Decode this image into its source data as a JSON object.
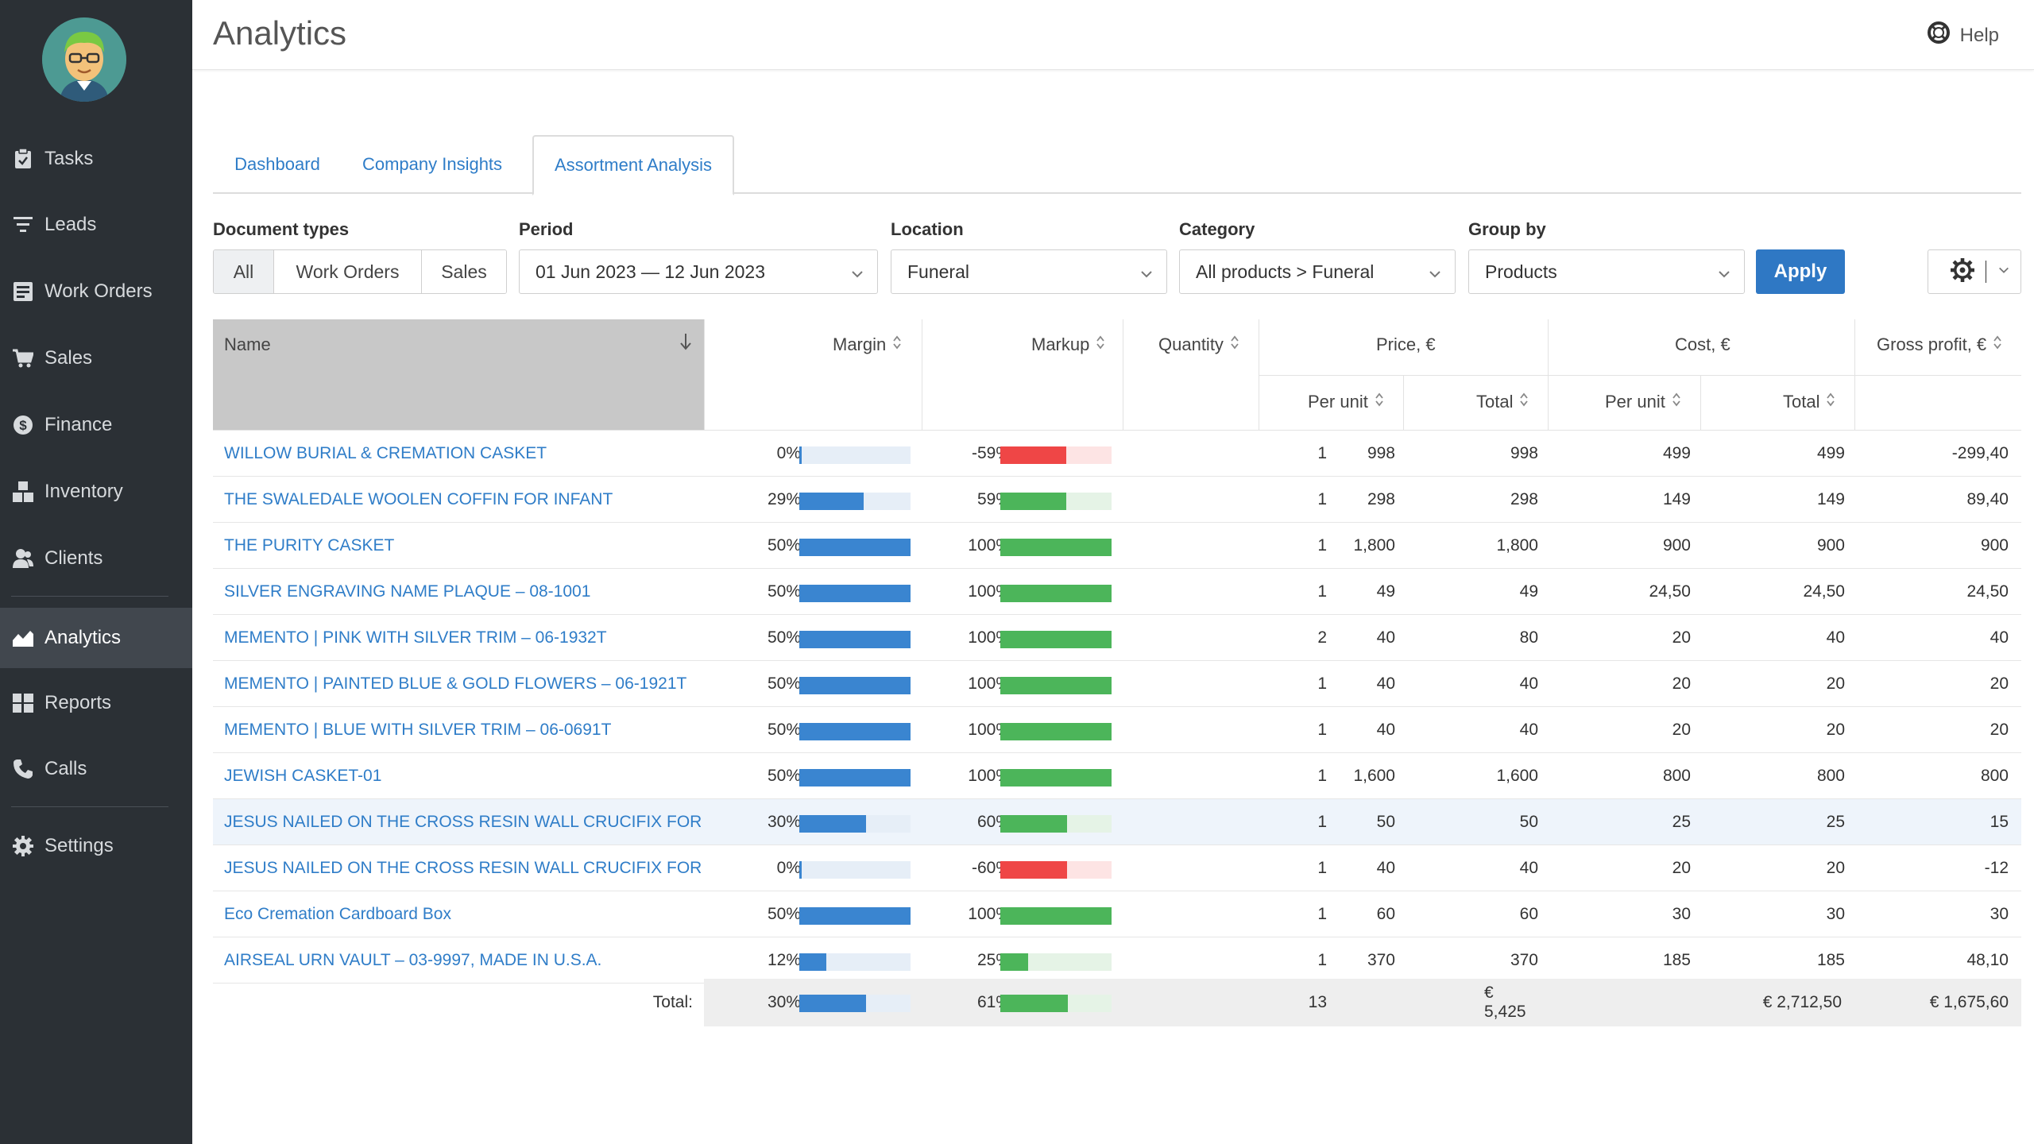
{
  "sidebar": {
    "items": [
      {
        "label": "Tasks",
        "icon": "clipboard-icon"
      },
      {
        "label": "Leads",
        "icon": "filter-icon"
      },
      {
        "label": "Work Orders",
        "icon": "document-icon"
      },
      {
        "label": "Sales",
        "icon": "cart-icon"
      },
      {
        "label": "Finance",
        "icon": "dollar-icon"
      },
      {
        "label": "Inventory",
        "icon": "boxes-icon"
      },
      {
        "label": "Clients",
        "icon": "users-icon"
      },
      {
        "label": "Analytics",
        "icon": "chart-icon"
      },
      {
        "label": "Reports",
        "icon": "reports-icon"
      },
      {
        "label": "Calls",
        "icon": "phone-icon"
      },
      {
        "label": "Settings",
        "icon": "gear-icon"
      }
    ],
    "active": "Analytics"
  },
  "header": {
    "title": "Analytics",
    "help_label": "Help"
  },
  "tabs": [
    {
      "label": "Dashboard"
    },
    {
      "label": "Company Insights"
    },
    {
      "label": "Assortment Analysis"
    }
  ],
  "filters": {
    "document_types_label": "Document types",
    "document_types": [
      "All",
      "Work Orders",
      "Sales"
    ],
    "document_types_selected": "All",
    "period_label": "Period",
    "period_value": "01 Jun 2023 — 12 Jun 2023",
    "location_label": "Location",
    "location_value": "Funeral",
    "category_label": "Category",
    "category_value": "All products > Funeral",
    "group_by_label": "Group by",
    "group_by_value": "Products",
    "apply_label": "Apply"
  },
  "table": {
    "headers": {
      "name": "Name",
      "margin": "Margin",
      "markup": "Markup",
      "quantity": "Quantity",
      "price": "Price, €",
      "cost": "Cost, €",
      "gross_profit": "Gross profit, €",
      "per_unit": "Per unit",
      "total": "Total"
    },
    "colors": {
      "margin_bar": "#3a85d0",
      "markup_positive": "#4cb55a",
      "markup_negative": "#ef4646",
      "track_blue": "#e6eef7",
      "track_green": "#e5f3e6",
      "track_red": "#fde4e4"
    },
    "rows": [
      {
        "name": "WILLOW BURIAL & CREMATION CASKET",
        "margin": "0%",
        "margin_value": 0,
        "markup": "-59%",
        "markup_value": -59,
        "quantity": "1",
        "price_unit": "998",
        "price_total": "998",
        "cost_unit": "499",
        "cost_total": "499",
        "gross_profit": "-299,40"
      },
      {
        "name": "THE SWALEDALE WOOLEN COFFIN FOR INFANT",
        "margin": "29%",
        "margin_value": 29,
        "markup": "59%",
        "markup_value": 59,
        "quantity": "1",
        "price_unit": "298",
        "price_total": "298",
        "cost_unit": "149",
        "cost_total": "149",
        "gross_profit": "89,40"
      },
      {
        "name": "THE PURITY CASKET",
        "margin": "50%",
        "margin_value": 50,
        "markup": "100%",
        "markup_value": 100,
        "quantity": "1",
        "price_unit": "1,800",
        "price_total": "1,800",
        "cost_unit": "900",
        "cost_total": "900",
        "gross_profit": "900"
      },
      {
        "name": "SILVER ENGRAVING NAME PLAQUE – 08-1001",
        "margin": "50%",
        "margin_value": 50,
        "markup": "100%",
        "markup_value": 100,
        "quantity": "1",
        "price_unit": "49",
        "price_total": "49",
        "cost_unit": "24,50",
        "cost_total": "24,50",
        "gross_profit": "24,50"
      },
      {
        "name": "MEMENTO | PINK WITH SILVER TRIM – 06-1932T",
        "margin": "50%",
        "margin_value": 50,
        "markup": "100%",
        "markup_value": 100,
        "quantity": "2",
        "price_unit": "40",
        "price_total": "80",
        "cost_unit": "20",
        "cost_total": "40",
        "gross_profit": "40"
      },
      {
        "name": "MEMENTO | PAINTED BLUE & GOLD FLOWERS – 06-1921T",
        "margin": "50%",
        "margin_value": 50,
        "markup": "100%",
        "markup_value": 100,
        "quantity": "1",
        "price_unit": "40",
        "price_total": "40",
        "cost_unit": "20",
        "cost_total": "20",
        "gross_profit": "20"
      },
      {
        "name": "MEMENTO | BLUE WITH SILVER TRIM – 06-0691T",
        "margin": "50%",
        "margin_value": 50,
        "markup": "100%",
        "markup_value": 100,
        "quantity": "1",
        "price_unit": "40",
        "price_total": "40",
        "cost_unit": "20",
        "cost_total": "20",
        "gross_profit": "20"
      },
      {
        "name": "JEWISH CASKET-01",
        "margin": "50%",
        "margin_value": 50,
        "markup": "100%",
        "markup_value": 100,
        "quantity": "1",
        "price_unit": "1,600",
        "price_total": "1,600",
        "cost_unit": "800",
        "cost_total": "800",
        "gross_profit": "800"
      },
      {
        "name": "JESUS NAILED ON THE CROSS RESIN WALL CRUCIFIX FOR H...",
        "margin": "30%",
        "margin_value": 30,
        "markup": "60%",
        "markup_value": 60,
        "quantity": "1",
        "price_unit": "50",
        "price_total": "50",
        "cost_unit": "25",
        "cost_total": "25",
        "gross_profit": "15",
        "highlighted": true
      },
      {
        "name": "JESUS NAILED ON THE CROSS RESIN WALL CRUCIFIX FOR H...",
        "margin": "0%",
        "margin_value": 0,
        "markup": "-60%",
        "markup_value": -60,
        "quantity": "1",
        "price_unit": "40",
        "price_total": "40",
        "cost_unit": "20",
        "cost_total": "20",
        "gross_profit": "-12"
      },
      {
        "name": "Eco Cremation Cardboard Box",
        "margin": "50%",
        "margin_value": 50,
        "markup": "100%",
        "markup_value": 100,
        "quantity": "1",
        "price_unit": "60",
        "price_total": "60",
        "cost_unit": "30",
        "cost_total": "30",
        "gross_profit": "30"
      },
      {
        "name": "AIRSEAL URN VAULT – 03-9997, MADE IN U.S.A.",
        "margin": "12%",
        "margin_value": 12,
        "markup": "25%",
        "markup_value": 25,
        "quantity": "1",
        "price_unit": "370",
        "price_total": "370",
        "cost_unit": "185",
        "cost_total": "185",
        "gross_profit": "48,10"
      }
    ],
    "total": {
      "label": "Total:",
      "margin": "30%",
      "margin_value": 30,
      "markup": "61%",
      "markup_value": 61,
      "quantity": "13",
      "price_total": "€ 5,425",
      "cost_total": "€ 2,712,50",
      "gross_profit": "€ 1,675,60"
    }
  }
}
